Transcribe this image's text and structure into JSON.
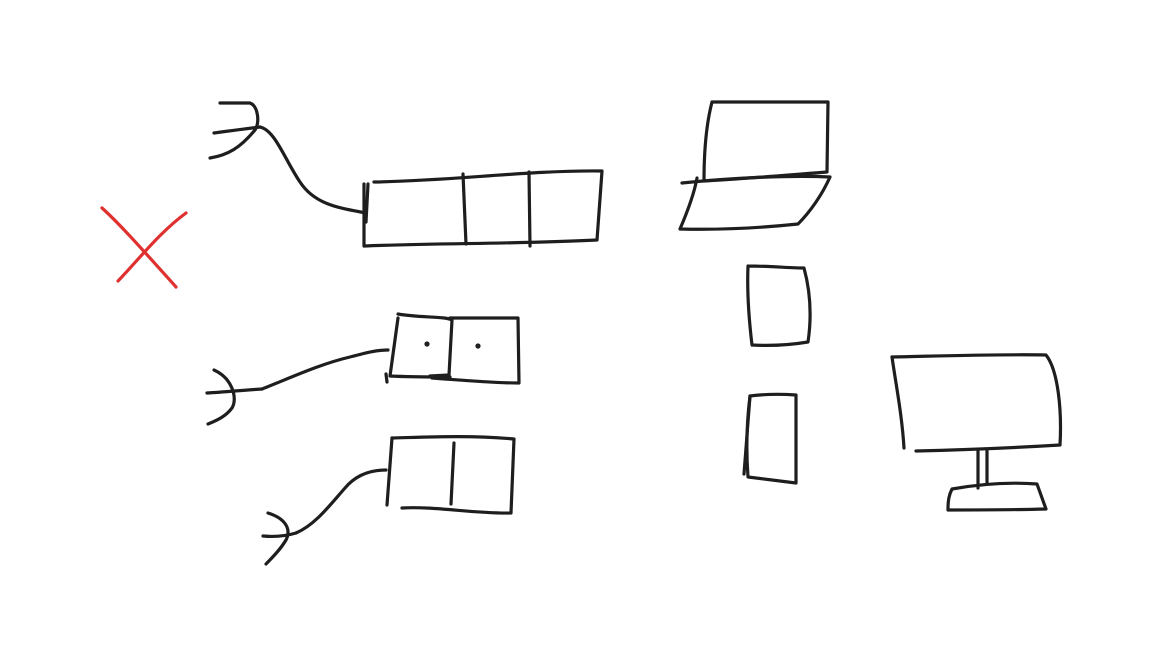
{
  "diagram": {
    "background": "#ffffff",
    "ink_color": "#1e1e1e",
    "mark_color": "#e03131",
    "nodes": [
      {
        "id": "power-plug-top",
        "kind": "power-plug"
      },
      {
        "id": "power-strip-3-socket",
        "kind": "power-strip",
        "sockets": 3
      },
      {
        "id": "power-plug-middle",
        "kind": "power-plug"
      },
      {
        "id": "power-strip-2-socket-dotted",
        "kind": "power-strip",
        "sockets": 2
      },
      {
        "id": "power-plug-bottom",
        "kind": "power-plug"
      },
      {
        "id": "power-strip-2-socket",
        "kind": "power-strip",
        "sockets": 2
      },
      {
        "id": "laptop",
        "kind": "laptop"
      },
      {
        "id": "device-box-upper",
        "kind": "device"
      },
      {
        "id": "device-box-lower",
        "kind": "device"
      },
      {
        "id": "monitor",
        "kind": "monitor"
      },
      {
        "id": "cross-mark",
        "kind": "x-mark",
        "meaning": "rejected"
      }
    ],
    "connections": [
      {
        "from": "power-plug-top",
        "to": "power-strip-3-socket"
      },
      {
        "from": "power-plug-middle",
        "to": "power-strip-2-socket-dotted"
      },
      {
        "from": "power-plug-bottom",
        "to": "power-strip-2-socket"
      }
    ]
  }
}
